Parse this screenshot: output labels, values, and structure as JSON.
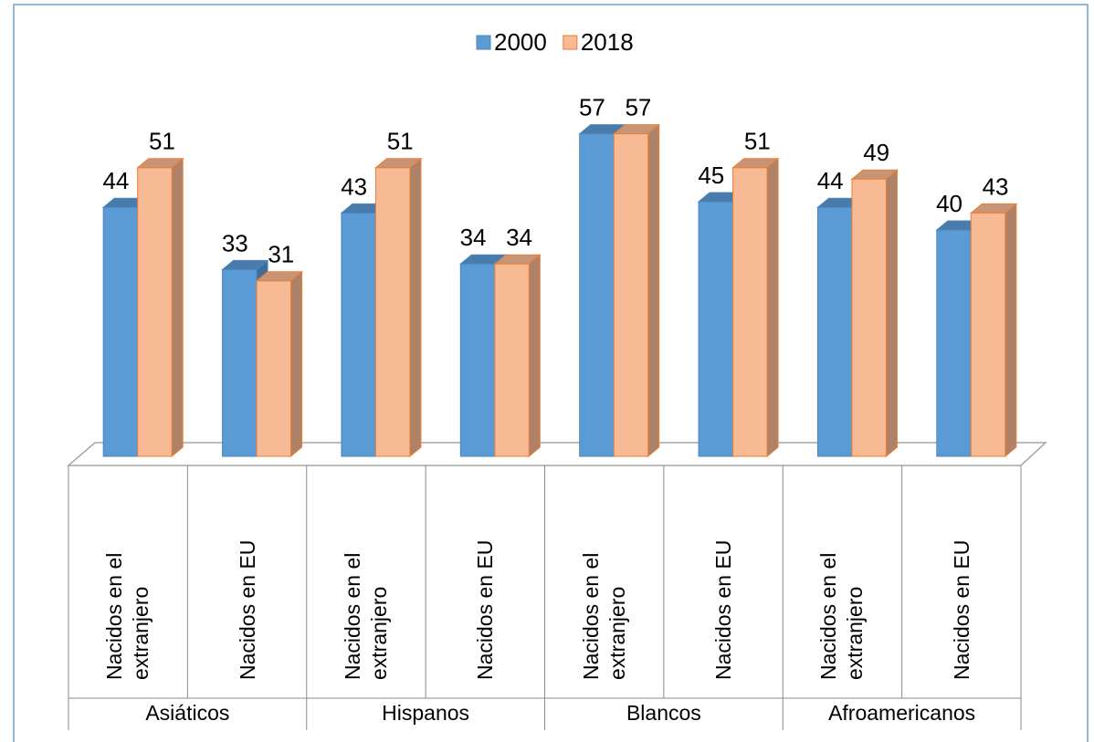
{
  "chart_data": {
    "type": "bar3d",
    "groups": [
      "Asiáticos",
      "Hispanos",
      "Blancos",
      "Afroamericanos"
    ],
    "categories": [
      "Nacidos en el extranjero",
      "Nacidos en EU",
      "Nacidos en el extranjero",
      "Nacidos en EU",
      "Nacidos en el extranjero",
      "Nacidos en EU",
      "Nacidos en el extranjero",
      "Nacidos en EU"
    ],
    "series": [
      {
        "name": "2000",
        "color": "#5b9bd5",
        "values": [
          44,
          33,
          43,
          34,
          57,
          45,
          44,
          40
        ]
      },
      {
        "name": "2018",
        "color": "#f8b995",
        "values": [
          51,
          31,
          51,
          34,
          57,
          51,
          49,
          43
        ]
      }
    ],
    "legend": "top"
  }
}
